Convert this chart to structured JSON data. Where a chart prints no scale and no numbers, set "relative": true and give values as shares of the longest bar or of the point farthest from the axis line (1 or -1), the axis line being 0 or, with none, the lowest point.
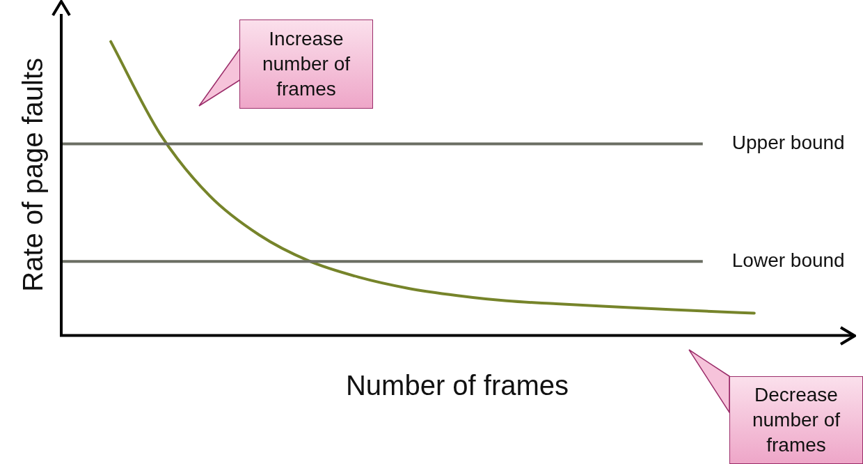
{
  "chart_data": {
    "type": "line",
    "relative": true,
    "xlabel": "Number of frames",
    "ylabel": "Rate of page faults",
    "categories": [
      null,
      null,
      null,
      null,
      null,
      null,
      null,
      null,
      null,
      null,
      null,
      null,
      null,
      null,
      null,
      null,
      null
    ],
    "series": [
      {
        "color": "#76842a",
        "values": [
          null,
          1.0,
          0.685,
          0.475,
          0.342,
          0.254,
          0.199,
          0.161,
          0.136,
          0.118,
          0.108,
          0.099,
          0.091,
          0.083,
          0.076,
          null,
          null
        ]
      }
    ],
    "ref_lines": [
      {
        "axis": "y",
        "value": 0.652,
        "label": "Upper bound",
        "color": "#6b6e63"
      },
      {
        "axis": "y",
        "value": 0.252,
        "label": "Lower bound",
        "color": "#6b6e63"
      }
    ],
    "annotations": [
      "Increase number of frames",
      "Decrease number of frames"
    ],
    "legend": false,
    "grid": false,
    "marker": "none",
    "line_style": "solid"
  }
}
